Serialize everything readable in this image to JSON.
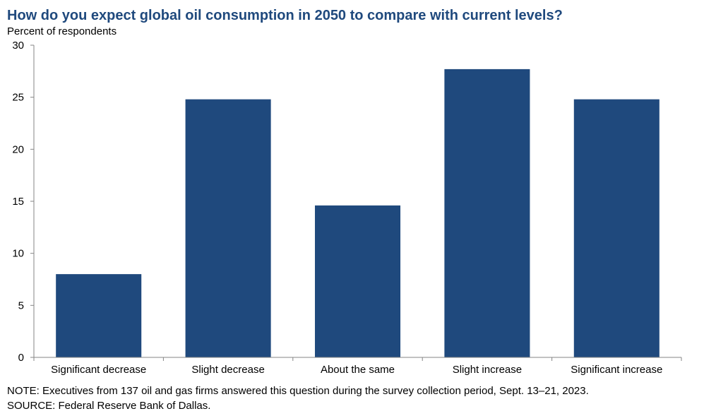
{
  "chart_data": {
    "type": "bar",
    "title": "How do you expect global oil consumption in 2050 to compare with current levels?",
    "ylabel": "Percent of respondents",
    "xlabel": "",
    "categories": [
      "Significant decrease",
      "Slight decrease",
      "About the same",
      "Slight increase",
      "Significant increase"
    ],
    "values": [
      8.0,
      24.8,
      14.6,
      27.7,
      24.8
    ],
    "ylim": [
      0,
      30
    ],
    "yticks": [
      0,
      5,
      10,
      15,
      20,
      25,
      30
    ],
    "bar_color": "#1f497d",
    "grid": false,
    "legend": "none"
  },
  "footer": {
    "note": "NOTE: Executives from 137 oil and gas firms answered this question during the survey collection period, Sept. 13–21, 2023.",
    "source": "SOURCE: Federal Reserve Bank of Dallas."
  }
}
